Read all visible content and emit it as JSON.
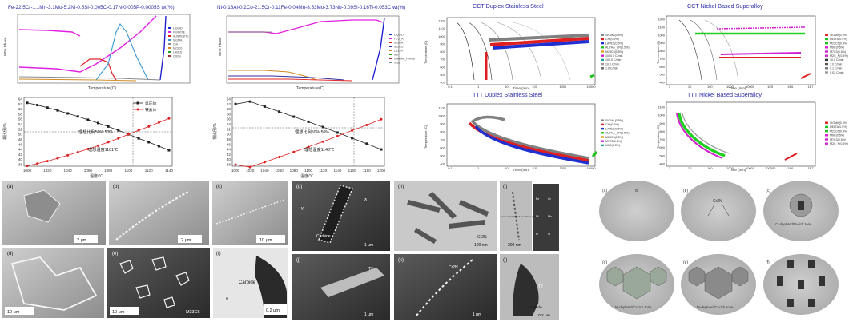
{
  "panels": {
    "phase_fe": {
      "title": "Fe-22.5Cr-1.1Mn-3.1Mo-5.2Ni-0.5Si-0.005C-0.17N-0.005P-0.0005S wt(%)",
      "ylabel": "Wt% Phase",
      "xlabel": "Temperature(C)"
    },
    "phase_ni": {
      "title": "Ni-0.18Al-0.2Co-21.5Cr-0.11Fe-0.04Mn-8.53Mo-3.73Nb-0.09Si-0.16Ti-0.053C wt(%)",
      "ylabel": "Wt% Phase",
      "xlabel": "Temperature(C)"
    },
    "ratio_1": {
      "yticks": [
        "64",
        "62",
        "60",
        "58",
        "56",
        "54",
        "52",
        "50",
        "48",
        "46",
        "44",
        "42",
        "40",
        "38"
      ],
      "xticks": [
        "1000",
        "1020",
        "1040",
        "1060",
        "1080",
        "1100",
        "1120",
        "1140"
      ],
      "ylabel": "相比例/%",
      "xlabel": "温度/℃",
      "legend": [
        "奥氏体",
        "铁素体"
      ],
      "note_ratio": "理想比例50%:50%",
      "note_temp": "理想温度1101℃"
    },
    "ratio_2": {
      "yticks": [
        "64",
        "62",
        "60",
        "58",
        "56",
        "54",
        "52",
        "50",
        "48",
        "46",
        "44",
        "42",
        "40",
        "38"
      ],
      "xticks": [
        "1000",
        "1020",
        "1040",
        "1060",
        "1080",
        "1100",
        "1120",
        "1140",
        "1160",
        "1180",
        "1200"
      ],
      "ylabel": "相比例/%",
      "xlabel": "温度/℃",
      "legend": [
        "奥氏体",
        "铁素体"
      ],
      "note_ratio": "理想比例50%:50%",
      "note_temp": "理想温度1148℃"
    },
    "cct_duplex": {
      "title": "CCT Duplex Stainless Steel",
      "ylabel": "Temperature (C)",
      "xlabel": "Time (min)",
      "yticks": [
        "1200",
        "1100",
        "1000",
        "900",
        "800",
        "700",
        "600",
        "500",
        "400"
      ],
      "xticks": [
        "0.1",
        "1",
        "10",
        "100",
        "1000",
        "10000"
      ],
      "legend": [
        "SIGMA(0.5%)",
        "CHI(0.5%)",
        "LAVES(0.5%)",
        "ALPHA_CR(0.5%)",
        "M23C6(0.5%)",
        "1000.0 C/min",
        "100.0 C/min",
        "10.0 C/min",
        "1.0 C/min"
      ]
    },
    "ttt_duplex": {
      "title": "TTT Duplex Stainless Steel",
      "ylabel": "Temperature (C)",
      "xlabel": "Time (min)",
      "yticks": [
        "1100",
        "1000",
        "900",
        "800",
        "700",
        "600",
        "500",
        "400"
      ],
      "xticks": [
        "0.1",
        "1",
        "10",
        "100",
        "1000",
        "10000"
      ],
      "legend": [
        "SIGMA(0.5%)",
        "CHI(0.5%)",
        "LAVES(0.5%)",
        "ALPHA_CR(0.5%)",
        "M23C6(0.5%)",
        "M7C3(0.5%)",
        "M6C(0.5%)"
      ]
    },
    "cct_ni": {
      "title": "CCT Nickel Based Superalloy",
      "ylabel": "Temperature (C)",
      "xlabel": "Time (min)",
      "yticks": [
        "1200",
        "1100",
        "1000",
        "900",
        "800",
        "700",
        "600",
        "500",
        "400"
      ],
      "xticks": [
        "1",
        "10",
        "100",
        "1000",
        "10000",
        "1E5",
        "1E6",
        "1E7"
      ],
      "legend": [
        "SIGMA(0.5%)",
        "DELTA(0.5%)",
        "M23C6(0.5%)",
        "M6C(0.5%)",
        "M7C3(0.5%)",
        "M2C_N(0.5%)",
        "10.0 C/min",
        "1.0 C/min",
        "0.1 C/min",
        "0.01 C/min"
      ]
    },
    "ttt_ni": {
      "title": "TTT Nickel Based Superalloy",
      "ylabel": "Temperature (C)",
      "xlabel": "Time (min)",
      "yticks": [
        "1100",
        "1000",
        "900",
        "800",
        "700",
        "600",
        "500",
        "400"
      ],
      "xticks": [
        "1",
        "10",
        "100",
        "1000",
        "10000",
        "100000",
        "1E6",
        "1E7"
      ],
      "legend": [
        "SIGMA(0.5%)",
        "DELTA(0.5%)",
        "M23C6(0.5%)",
        "M6C(0.5%)",
        "M7C3(0.5%)",
        "M2C_N(0.5%)"
      ]
    },
    "micro_left": {
      "labels": [
        "(a)",
        "(b)",
        "(c)",
        "(d)",
        "(e)",
        "(f)"
      ],
      "scales": [
        "2 μm",
        "2 μm",
        "10 μm",
        "10 μm",
        "10 μm",
        "0.2 μm"
      ],
      "inner": {
        "e": "M23C6",
        "f_carbide": "Carbide",
        "f_gamma": "γ"
      }
    },
    "micro_mid": {
      "labels": [
        "(g)",
        "(h)",
        "(i)",
        "(j)",
        "(k)",
        "(l)"
      ],
      "scales": [
        "1 μm",
        "100 nm",
        "200 nm",
        "1 μm",
        "1 μm",
        "0.2 μm"
      ],
      "inner": {
        "g_carbide": "Carbide",
        "g_gamma": "γ",
        "g_delta": "δ",
        "h_cr2n": "Cr2N",
        "k_cr2n": "Cr2N",
        "l_carbide": "Carbide",
        "l_t2": "T2",
        "j_t2": "T2",
        "i_note": "A row of rod-shaped precipitates (Cr2N)",
        "i_eds": [
          "Fe",
          "Cr",
          "Ni",
          "Mo",
          "N",
          "Si"
        ]
      }
    },
    "schem": {
      "labels": [
        "(a)",
        "(b)",
        "(c)",
        "(d)",
        "(e)",
        "(f)"
      ],
      "inner": {
        "a": "α",
        "b_center": "Cr2N",
        "c_zone": "Cr-depleted/Ni-rich zone",
        "d_zone": "Ni-depleted/Cr-rich zone",
        "e_zone": "Ni-depleted/Cr-rich zone"
      }
    }
  },
  "chart_data": [
    {
      "type": "line",
      "title": "Fe-22.5Cr-1.1Mn-3.1Mo-5.2Ni-0.5Si-0.005C-0.17N-0.005P-0.0005S wt(%)",
      "xlabel": "Temperature(C)",
      "ylabel": "Wt% Phase",
      "series": [
        {
          "name": "LIQUID",
          "values": [
            [
              1460,
              0
            ],
            [
              1500,
              100
            ]
          ]
        },
        {
          "name": "FERRITE",
          "values": [
            [
              400,
              33
            ],
            [
              800,
              30
            ],
            [
              1100,
              70
            ],
            [
              1400,
              100
            ]
          ]
        },
        {
          "name": "AUSTENITE",
          "values": [
            [
              400,
              65
            ],
            [
              800,
              68
            ],
            [
              1100,
              30
            ],
            [
              1400,
              0
            ]
          ]
        },
        {
          "name": "SIGMA",
          "values": [
            [
              400,
              0
            ],
            [
              850,
              25
            ],
            [
              950,
              0
            ]
          ]
        }
      ]
    },
    {
      "type": "line",
      "title": "Ni-0.18Al-0.2Co-21.5Cr-0.11Fe-0.04Mn-8.53Mo-3.73Nb-0.09Si-0.16Ti-0.053C wt(%)",
      "xlabel": "Temperature(C)",
      "ylabel": "Wt% Phase",
      "series": [
        {
          "name": "FCC_A1",
          "values": [
            [
              400,
              60
            ],
            [
              800,
              80
            ],
            [
              1150,
              98
            ],
            [
              1300,
              98
            ]
          ]
        },
        {
          "name": "LIQUID",
          "values": [
            [
              1250,
              0
            ],
            [
              1350,
              100
            ]
          ]
        }
      ]
    },
    {
      "type": "line",
      "xlabel": "温度/℃",
      "ylabel": "相比例/%",
      "x": [
        1000,
        1010,
        1020,
        1030,
        1040,
        1050,
        1060,
        1070,
        1080,
        1090,
        1100,
        1110,
        1120,
        1130,
        1140
      ],
      "series": [
        {
          "name": "奥氏体",
          "values": [
            62.5,
            61.6,
            60.6,
            59.5,
            58.3,
            57.1,
            55.8,
            54.5,
            53.1,
            51.6,
            50.0,
            48.4,
            46.9,
            45.3,
            43.7
          ]
        },
        {
          "name": "铁素体",
          "values": [
            37.5,
            38.4,
            39.4,
            40.5,
            41.7,
            42.9,
            44.2,
            45.5,
            46.9,
            48.4,
            50.0,
            51.6,
            53.1,
            54.7,
            56.3
          ]
        }
      ]
    },
    {
      "type": "line",
      "xlabel": "温度/℃",
      "ylabel": "相比例/%",
      "x": [
        1000,
        1020,
        1040,
        1060,
        1080,
        1100,
        1120,
        1140,
        1160,
        1180,
        1200
      ],
      "series": [
        {
          "name": "奥氏体",
          "values": [
            62.0,
            63.0,
            61.0,
            59.0,
            57.0,
            55.0,
            52.9,
            50.7,
            48.5,
            46.3,
            44.0
          ]
        },
        {
          "name": "铁素体",
          "values": [
            38.0,
            37.0,
            39.0,
            41.0,
            43.0,
            45.0,
            47.1,
            49.3,
            51.5,
            53.7,
            56.0
          ]
        }
      ]
    }
  ]
}
